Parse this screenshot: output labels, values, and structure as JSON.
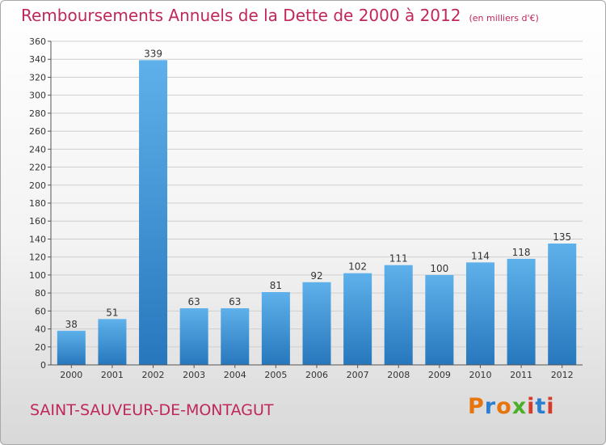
{
  "title": "Remboursements Annuels de la Dette de 2000 à 2012",
  "unit": "(en milliers d'€)",
  "city": "SAINT-SAUVEUR-DE-MONTAGUT",
  "logo": "Proxiti",
  "colors": {
    "title": "#c0275b",
    "bar_light": "#5eb1ea",
    "bar_dark": "#2777bd",
    "grid": "#cfcfcf",
    "logo_letters": [
      "#e8740c",
      "#2c7fd0",
      "#e8740c",
      "#4caf2a",
      "#d63a2a",
      "#2c7fd0",
      "#d63a2a"
    ]
  },
  "chart_data": {
    "type": "bar",
    "title": "Remboursements Annuels de la Dette de 2000 à 2012",
    "ylabel": "en milliers d'€",
    "xlabel": "",
    "categories": [
      "2000",
      "2001",
      "2002",
      "2003",
      "2004",
      "2005",
      "2006",
      "2007",
      "2008",
      "2009",
      "2010",
      "2011",
      "2012"
    ],
    "values": [
      38,
      51,
      339,
      63,
      63,
      81,
      92,
      102,
      111,
      100,
      114,
      118,
      135
    ],
    "ylim": [
      0,
      360
    ],
    "yticks": [
      0,
      20,
      40,
      60,
      80,
      100,
      120,
      140,
      160,
      180,
      200,
      220,
      240,
      260,
      280,
      300,
      320,
      340,
      360
    ],
    "grid": true
  }
}
